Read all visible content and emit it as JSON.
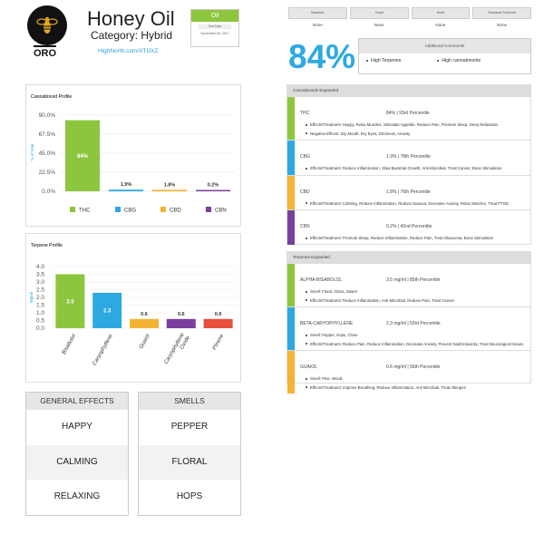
{
  "header": {
    "logo_text": "ORO",
    "title": "Honey Oil",
    "category": "Category: Hybrid",
    "link": "HighNorth.com/XTUXZ",
    "type_label": "Oil",
    "test_label": "Test Date",
    "test_date": "November 08, 2017"
  },
  "contaminants": {
    "headers": [
      "Bacteria",
      "Yeast",
      "Mold",
      "Residual Solvents"
    ],
    "values": [
      "None",
      "None",
      "None",
      "None"
    ]
  },
  "thc_total": "84%",
  "comments": {
    "title": "Additional Comments",
    "items": [
      "High Terpenes",
      "High cannabinoids"
    ]
  },
  "cannabinoid_chart": {
    "title": "Cannabinoid Profile",
    "colors": [
      "#8cc63f",
      "#2da9e1",
      "#f5b335",
      "#7a3f9d"
    ]
  },
  "terpene_chart": {
    "title": "Terpene Profile",
    "colors": [
      "#8cc63f",
      "#2da9e1",
      "#f5b335",
      "#7a3f9d",
      "#e94f3d"
    ]
  },
  "chart_data": [
    {
      "type": "bar",
      "title": "Cannabinoid Profile",
      "categories": [
        "THC",
        "CBG",
        "CBD",
        "CBN"
      ],
      "values": [
        84,
        1.9,
        1.8,
        0.2
      ],
      "value_labels": [
        "84%",
        "1.9%",
        "1.8%",
        "0.2%"
      ],
      "ylabel": "% of total",
      "yticks": [
        "0.0%",
        "22.5%",
        "45.0%",
        "67.5%",
        "90.0%"
      ],
      "ylim": [
        0,
        90
      ],
      "legend": "bottom"
    },
    {
      "type": "bar",
      "title": "Terpene Profile",
      "categories": [
        "Bisabolol",
        "Caryophyllene",
        "Guaiol",
        "Caryophyllene Oxide",
        "Pinene"
      ],
      "values": [
        3.5,
        2.3,
        0.6,
        0.6,
        0.6
      ],
      "value_labels": [
        "3.5",
        "2.3",
        "0.6",
        "0.6",
        "0.6"
      ],
      "ylabel": "Mg/ml",
      "yticks": [
        "0.0",
        "0.5",
        "1.0",
        "1.5",
        "2.0",
        "2.5",
        "3.0",
        "3.5",
        "4.0"
      ],
      "ylim": [
        0,
        4
      ]
    }
  ],
  "cannabinoids_expanded": {
    "title": "Cannabinoids Expanded",
    "rows": [
      {
        "name": "THC",
        "pct": "84% | 93rd Percentile",
        "color": "#8cc63f",
        "lines": [
          "Effects/Treatment: Happy, Relax Muscles, Stimulate Appetite, Reduce Pain, Promote Sleep, Deep Relaxation",
          "Negative Effects: Dry Mouth, Dry Eyes, Dizziness, Anxiety"
        ]
      },
      {
        "name": "CBG",
        "pct": "1.9% | 78th Percentile",
        "color": "#2da9e1",
        "lines": [
          "Effects/Treatment: Reduce Inflammation, Slow Bacterial Growth, Anti-Microbial, Treat Cancer, Bone Stimulation"
        ]
      },
      {
        "name": "CBD",
        "pct": "1.8% | 76th Percentile",
        "color": "#f5b335",
        "lines": [
          "Effects/Treatment: Calming, Reduce Inflammation, Reduce Nausea, Decrease Anxiety, Relax Muscles, Treat PTSD"
        ]
      },
      {
        "name": "CBN",
        "pct": "0.2% | 42nd Percentile",
        "color": "#7a3f9d",
        "lines": [
          "Effects/Treatment: Promote Sleep, Reduce Inflammation, Reduce Pain, Treat Glaucoma, Bone Stimulation"
        ]
      }
    ]
  },
  "terpenes_expanded": {
    "title": "Terpenes Expanded",
    "rows": [
      {
        "name": "ALPHA-BISABOLOL",
        "pct": "3.5 mg/ml | 85th Percentile",
        "color": "#8cc63f",
        "lines": [
          "Smell: Floral, Citrus, Sweet",
          "Effects/Treatment: Reduce Inflammation, Anti-Microbial, Reduce Pain, Treat Cancer"
        ]
      },
      {
        "name": "BETA-CARYOPHYLLENE",
        "pct": "2.3 mg/ml | 53rd Percentile",
        "color": "#2da9e1",
        "lines": [
          "Smell: Pepper, Hops, Clove",
          "Effects/Treatment: Reduce Pain, Reduce Inflammation, Decrease Anxiety, Prevent Nephrotoxicity, Treat Neurological Issues"
        ]
      },
      {
        "name": "GUAIOL",
        "pct": "0.6 mg/ml | 56th Percentile",
        "color": "#f5b335",
        "lines": [
          "Smell: Pine, Wood",
          "Effects/Treatment: Improve Breathing, Reduce Inflammation, Anti Microbial, Treat Allergies"
        ]
      }
    ]
  },
  "general_effects": {
    "title": "GENERAL EFFECTS",
    "items": [
      "HAPPY",
      "CALMING",
      "RELAXING"
    ]
  },
  "smells": {
    "title": "SMELLS",
    "items": [
      "PEPPER",
      "FLORAL",
      "HOPS"
    ]
  }
}
